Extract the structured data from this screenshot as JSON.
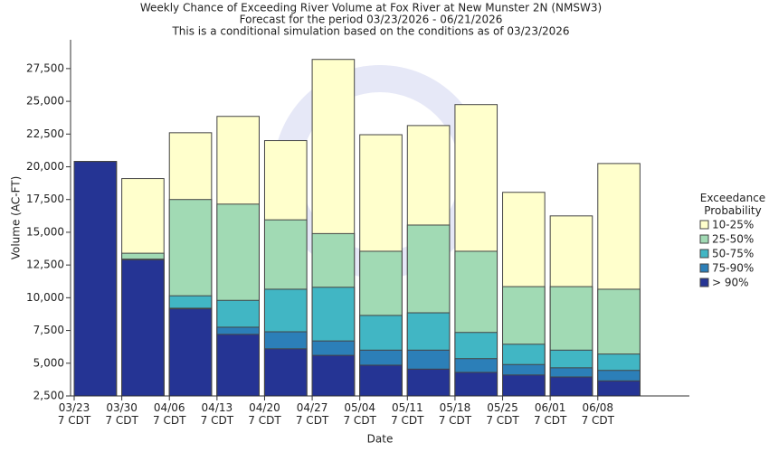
{
  "chart_data": {
    "type": "bar",
    "overlay": true,
    "title": "Weekly Chance of Exceeding River Volume at Fox River at New Munster 2N (NMSW3)",
    "subtitle": "Forecast for the period 03/23/2026 - 06/21/2026",
    "note": "This is a conditional simulation based on the conditions as of 03/23/2026",
    "y_label": "Volume (AC-FT)",
    "x_label": "Date",
    "legend_title": "Exceedance\nProbability",
    "legend_position": "right",
    "categories": [
      "03/23\n7 CDT",
      "03/30\n7 CDT",
      "04/06\n7 CDT",
      "04/13\n7 CDT",
      "04/20\n7 CDT",
      "04/27\n7 CDT",
      "05/04\n7 CDT",
      "05/11\n7 CDT",
      "05/18\n7 CDT",
      "05/25\n7 CDT",
      "06/01\n7 CDT",
      "06/08\n7 CDT",
      null
    ],
    "series": [
      {
        "name": "10-25%",
        "color": "#ffffcc",
        "values": [
          20400,
          19100,
          22600,
          23850,
          22000,
          28200,
          22450,
          23150,
          24750,
          18050,
          16250,
          20250,
          null
        ]
      },
      {
        "name": "25-50%",
        "color": "#a1dab4",
        "values": [
          20400,
          13400,
          17500,
          17150,
          15950,
          14900,
          13550,
          15550,
          13550,
          10850,
          10850,
          10650,
          null
        ]
      },
      {
        "name": "50-75%",
        "color": "#41b6c4",
        "values": [
          20400,
          12950,
          10150,
          9800,
          10650,
          10800,
          8650,
          8850,
          7350,
          6450,
          6000,
          5700,
          null
        ]
      },
      {
        "name": "75-90%",
        "color": "#2c7fb8",
        "values": [
          20400,
          12900,
          9200,
          7750,
          7400,
          6700,
          6000,
          6000,
          5350,
          4900,
          4650,
          4450,
          null
        ]
      },
      {
        "name": "> 90%",
        "color": "#253494",
        "values": [
          20400,
          12900,
          9150,
          7200,
          6100,
          5600,
          4850,
          4550,
          4300,
          4100,
          3950,
          3650,
          null
        ]
      }
    ],
    "ylim": [
      2500,
      29700
    ],
    "yticks": [
      {
        "value": 2500,
        "label": "2,500"
      },
      {
        "value": 5000,
        "label": "5,000"
      },
      {
        "value": 7500,
        "label": "7,500"
      },
      {
        "value": 10000,
        "label": "10,000"
      },
      {
        "value": 12500,
        "label": "12,500"
      },
      {
        "value": 15000,
        "label": "15,000"
      },
      {
        "value": 17500,
        "label": "17,500"
      },
      {
        "value": 20000,
        "label": "20,000"
      },
      {
        "value": 22500,
        "label": "22,500"
      },
      {
        "value": 25000,
        "label": "25,000"
      },
      {
        "value": 27500,
        "label": "27,500"
      }
    ]
  }
}
